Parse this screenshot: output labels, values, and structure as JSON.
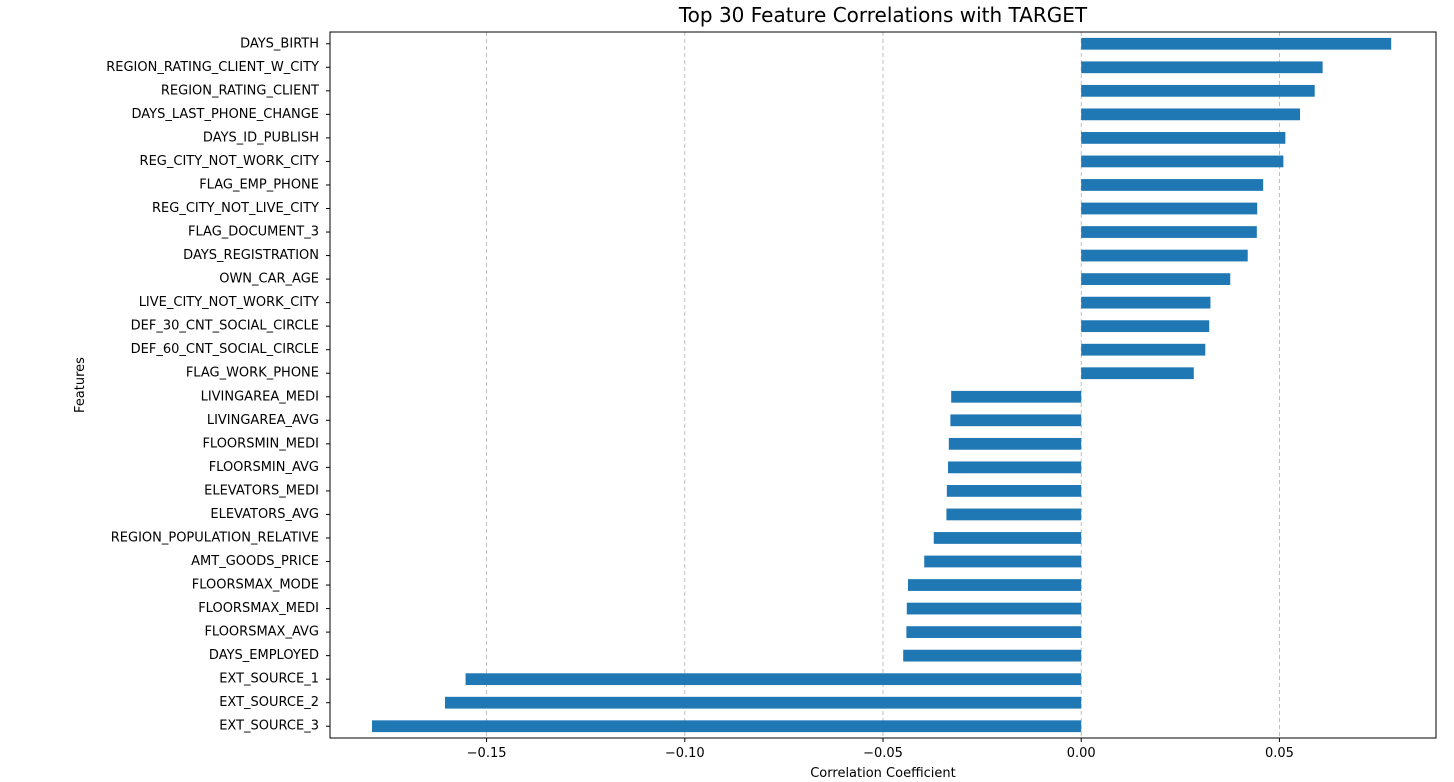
{
  "chart_data": {
    "type": "bar",
    "orientation": "horizontal",
    "title": "Top 30 Feature Correlations with TARGET",
    "xlabel": "Correlation Coefficient",
    "ylabel": "Features",
    "xlim": [
      -0.1895,
      0.0895
    ],
    "xticks": [
      -0.15,
      -0.1,
      -0.05,
      0.0,
      0.05
    ],
    "xtick_labels": [
      "−0.15",
      "−0.10",
      "−0.05",
      "0.00",
      "0.05"
    ],
    "grid": "x-dashed",
    "bar_color": "#1f77b4",
    "categories": [
      "DAYS_BIRTH",
      "REGION_RATING_CLIENT_W_CITY",
      "REGION_RATING_CLIENT",
      "DAYS_LAST_PHONE_CHANGE",
      "DAYS_ID_PUBLISH",
      "REG_CITY_NOT_WORK_CITY",
      "FLAG_EMP_PHONE",
      "REG_CITY_NOT_LIVE_CITY",
      "FLAG_DOCUMENT_3",
      "DAYS_REGISTRATION",
      "OWN_CAR_AGE",
      "LIVE_CITY_NOT_WORK_CITY",
      "DEF_30_CNT_SOCIAL_CIRCLE",
      "DEF_60_CNT_SOCIAL_CIRCLE",
      "FLAG_WORK_PHONE",
      "LIVINGAREA_MEDI",
      "LIVINGAREA_AVG",
      "FLOORSMIN_MEDI",
      "FLOORSMIN_AVG",
      "ELEVATORS_MEDI",
      "ELEVATORS_AVG",
      "REGION_POPULATION_RELATIVE",
      "AMT_GOODS_PRICE",
      "FLOORSMAX_MODE",
      "FLOORSMAX_MEDI",
      "FLOORSMAX_AVG",
      "DAYS_EMPLOYED",
      "EXT_SOURCE_1",
      "EXT_SOURCE_2",
      "EXT_SOURCE_3"
    ],
    "values": [
      0.0782,
      0.0609,
      0.0589,
      0.0552,
      0.0515,
      0.051,
      0.0459,
      0.0444,
      0.0443,
      0.042,
      0.0376,
      0.0326,
      0.0323,
      0.0313,
      0.0284,
      -0.0328,
      -0.033,
      -0.0334,
      -0.0336,
      -0.0339,
      -0.034,
      -0.0372,
      -0.0396,
      -0.0437,
      -0.044,
      -0.0441,
      -0.0449,
      -0.1553,
      -0.1605,
      -0.1789
    ]
  }
}
